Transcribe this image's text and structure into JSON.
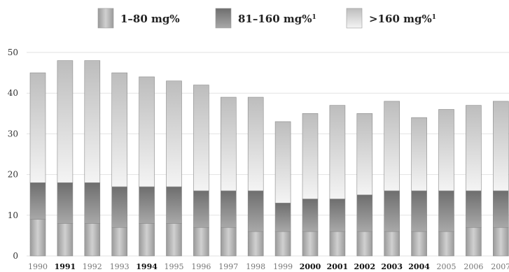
{
  "chart_data": {
    "type": "bar",
    "stacked": true,
    "title": "",
    "xlabel": "",
    "ylabel": "",
    "ylim": [
      0,
      50
    ],
    "yticks": [
      0,
      10,
      20,
      30,
      40,
      50
    ],
    "grid": true,
    "legend_position": "top",
    "categories": [
      "1990",
      "1991",
      "1992",
      "1993",
      "1994",
      "1995",
      "1996",
      "1997",
      "1998",
      "1999",
      "2000",
      "2001",
      "2002",
      "2003",
      "2004",
      "2005",
      "2006",
      "2007"
    ],
    "emphasized_categories": [
      "1991",
      "1994",
      "2000",
      "2001",
      "2002",
      "2003",
      "2004"
    ],
    "series": [
      {
        "name": "1–80 mg%",
        "sup": "",
        "color": "#b5b5b5",
        "values": [
          9,
          8,
          8,
          7,
          8,
          8,
          7,
          7,
          6,
          6,
          6,
          6,
          6,
          6,
          6,
          6,
          7,
          7
        ]
      },
      {
        "name": "81–160 mg%",
        "sup": "1",
        "color": "#7a7a7a",
        "values": [
          9,
          10,
          10,
          10,
          9,
          9,
          9,
          9,
          10,
          7,
          8,
          8,
          9,
          10,
          10,
          10,
          9,
          9
        ]
      },
      {
        "name": ">160 mg%",
        "sup": "1",
        "color": "#dadada",
        "values": [
          27,
          30,
          30,
          28,
          27,
          26,
          26,
          23,
          23,
          20,
          21,
          23,
          20,
          22,
          18,
          20,
          21,
          22
        ]
      }
    ]
  }
}
